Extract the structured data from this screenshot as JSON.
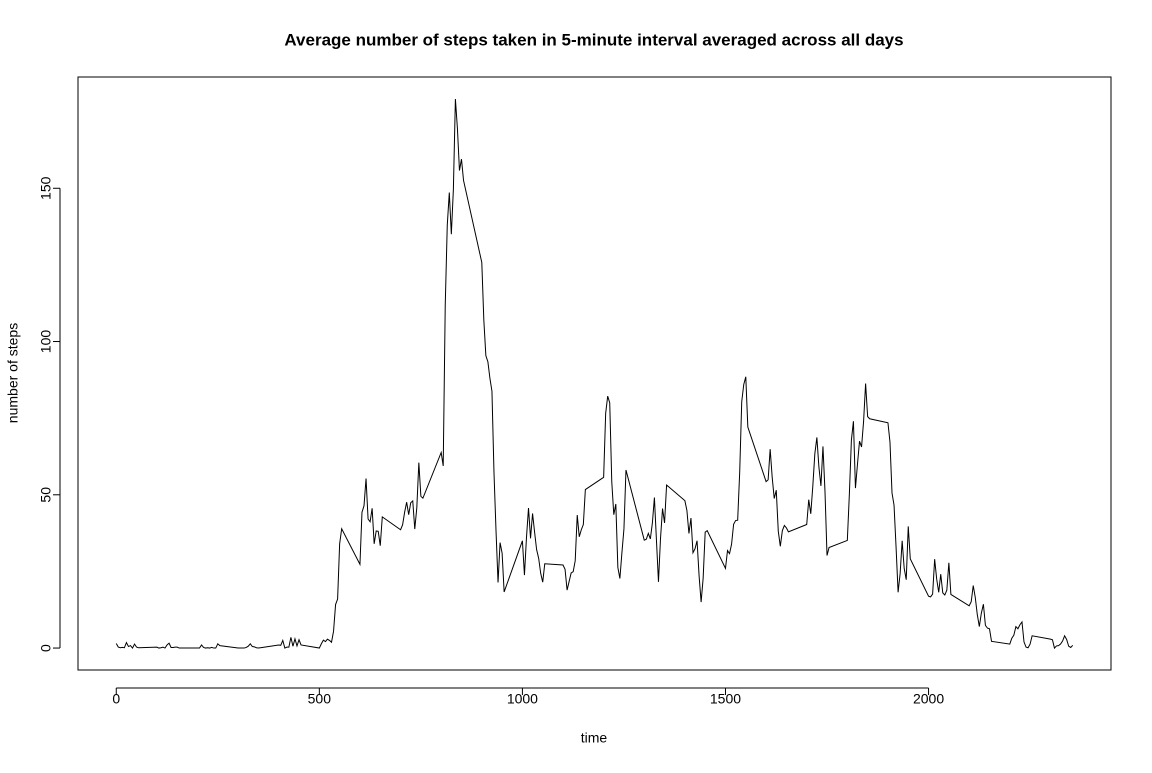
{
  "chart_data": {
    "type": "line",
    "title": "Average number of steps taken in 5-minute interval averaged across all days",
    "x_label": "time",
    "y_label": "number of steps",
    "x": [
      0,
      5,
      10,
      15,
      20,
      25,
      30,
      35,
      40,
      45,
      50,
      55,
      100,
      105,
      110,
      115,
      120,
      125,
      130,
      135,
      140,
      145,
      150,
      155,
      200,
      205,
      210,
      215,
      220,
      225,
      230,
      235,
      240,
      245,
      250,
      255,
      300,
      305,
      310,
      315,
      320,
      325,
      330,
      335,
      340,
      345,
      350,
      355,
      400,
      405,
      410,
      415,
      420,
      425,
      430,
      435,
      440,
      445,
      450,
      455,
      500,
      505,
      510,
      515,
      520,
      525,
      530,
      535,
      540,
      545,
      550,
      555,
      600,
      605,
      610,
      615,
      620,
      625,
      630,
      635,
      640,
      645,
      650,
      655,
      700,
      705,
      710,
      715,
      720,
      725,
      730,
      735,
      740,
      745,
      750,
      755,
      800,
      805,
      810,
      815,
      820,
      825,
      830,
      835,
      840,
      845,
      850,
      855,
      900,
      905,
      910,
      915,
      920,
      925,
      930,
      935,
      940,
      945,
      950,
      955,
      1000,
      1005,
      1010,
      1015,
      1020,
      1025,
      1030,
      1035,
      1040,
      1045,
      1050,
      1055,
      1100,
      1105,
      1110,
      1115,
      1120,
      1125,
      1130,
      1135,
      1140,
      1145,
      1150,
      1155,
      1200,
      1205,
      1210,
      1215,
      1220,
      1225,
      1230,
      1235,
      1240,
      1245,
      1250,
      1255,
      1300,
      1305,
      1310,
      1315,
      1320,
      1325,
      1330,
      1335,
      1340,
      1345,
      1350,
      1355,
      1400,
      1405,
      1410,
      1415,
      1420,
      1425,
      1430,
      1435,
      1440,
      1445,
      1450,
      1455,
      1500,
      1505,
      1510,
      1515,
      1520,
      1525,
      1530,
      1535,
      1540,
      1545,
      1550,
      1555,
      1600,
      1605,
      1610,
      1615,
      1620,
      1625,
      1630,
      1635,
      1640,
      1645,
      1650,
      1655,
      1700,
      1705,
      1710,
      1715,
      1720,
      1725,
      1730,
      1735,
      1740,
      1745,
      1750,
      1755,
      1800,
      1805,
      1810,
      1815,
      1820,
      1825,
      1830,
      1835,
      1840,
      1845,
      1850,
      1855,
      1900,
      1905,
      1910,
      1915,
      1920,
      1925,
      1930,
      1935,
      1940,
      1945,
      1950,
      1955,
      2000,
      2005,
      2010,
      2015,
      2020,
      2025,
      2030,
      2035,
      2040,
      2045,
      2050,
      2055,
      2100,
      2105,
      2110,
      2115,
      2120,
      2125,
      2130,
      2135,
      2140,
      2145,
      2150,
      2155,
      2200,
      2205,
      2210,
      2215,
      2220,
      2225,
      2230,
      2235,
      2240,
      2245,
      2250,
      2255,
      2300,
      2305,
      2310,
      2315,
      2320,
      2325,
      2330,
      2335,
      2340,
      2345,
      2350,
      2355
    ],
    "values": [
      1.5,
      0.3,
      0.1,
      0.2,
      0.1,
      1.8,
      0.5,
      0.8,
      0,
      1.3,
      0.3,
      0.1,
      0.3,
      0,
      0.1,
      0.3,
      0,
      1.0,
      1.6,
      0.2,
      0.2,
      0.3,
      0.3,
      0,
      0,
      0,
      1.0,
      0.2,
      0,
      0.1,
      0,
      0.2,
      0,
      0,
      1.4,
      0.8,
      0,
      0,
      0,
      0,
      0.2,
      0.6,
      1.4,
      0.5,
      0.4,
      0.1,
      0,
      0.1,
      1.0,
      0.9,
      2.5,
      0,
      0.3,
      0.3,
      3.5,
      0.6,
      3.0,
      0.7,
      2.7,
      1.0,
      0,
      1.4,
      2.6,
      2.1,
      2.9,
      2.5,
      1.9,
      5.5,
      14.2,
      16.0,
      34.0,
      38.9,
      27.3,
      44.3,
      46.4,
      55.3,
      42.1,
      41.2,
      45.6,
      34.0,
      38.2,
      38.1,
      33.4,
      42.8,
      38.6,
      40.2,
      44.3,
      47.6,
      43.5,
      47.4,
      48.0,
      38.8,
      45.8,
      60.5,
      49.5,
      48.9,
      63.8,
      59.4,
      111.9,
      138.0,
      148.6,
      135.0,
      149.5,
      179.1,
      169.5,
      155.8,
      159.5,
      152.6,
      125.8,
      107.0,
      95.4,
      93.4,
      88.0,
      83.8,
      57.3,
      38.3,
      21.4,
      34.4,
      31.0,
      18.3,
      35.0,
      23.8,
      36.0,
      45.7,
      35.8,
      43.9,
      37.8,
      32.1,
      29.3,
      24.4,
      21.5,
      27.5,
      27.1,
      25.7,
      18.9,
      21.7,
      24.5,
      24.9,
      28.5,
      43.4,
      36.3,
      38.6,
      40.3,
      51.7,
      55.7,
      76.6,
      82.2,
      80.0,
      54.3,
      43.5,
      47.0,
      26.3,
      22.7,
      31.1,
      38.9,
      58.1,
      35.2,
      35.5,
      37.4,
      35.6,
      40.8,
      49.1,
      35.2,
      21.6,
      35.7,
      45.5,
      40.8,
      53.2,
      48.1,
      44.9,
      37.4,
      42.4,
      31.1,
      32.4,
      35.0,
      23.6,
      15.0,
      22.8,
      37.8,
      38.3,
      26.0,
      31.8,
      30.8,
      33.9,
      40.4,
      41.6,
      41.7,
      57.4,
      80.4,
      86.0,
      88.5,
      72.1,
      54.3,
      54.9,
      64.9,
      55.7,
      48.8,
      51.5,
      38.1,
      33.2,
      38.3,
      40.0,
      39.2,
      37.9,
      40.3,
      48.4,
      43.8,
      52.8,
      63.4,
      68.7,
      59.1,
      52.9,
      65.8,
      51.1,
      30.2,
      32.8,
      35.1,
      50.2,
      67.8,
      74.0,
      52.2,
      60.0,
      67.5,
      65.6,
      73.9,
      86.3,
      75.5,
      74.8,
      73.5,
      67.2,
      50.6,
      46.6,
      32.9,
      18.2,
      24.3,
      35.0,
      26.0,
      22.3,
      39.7,
      29.1,
      16.9,
      16.7,
      17.6,
      29.0,
      22.5,
      18.2,
      24.1,
      18.0,
      17.3,
      18.9,
      27.8,
      17.5,
      13.8,
      15.1,
      20.4,
      16.5,
      10.9,
      7.0,
      11.4,
      14.3,
      7.4,
      6.5,
      6.3,
      2.2,
      1.3,
      3.2,
      4.2,
      7.0,
      6.3,
      7.6,
      8.5,
      2.0,
      0.3,
      0.1,
      1.3,
      4.0,
      2.9,
      2.7,
      0,
      0.7,
      0.8,
      1.3,
      2.3,
      4.0,
      2.8,
      0.6,
      0.2,
      0.9
    ],
    "color": "#000000",
    "xlim": [
      -94.2,
      2449.2
    ],
    "xticks": [
      0,
      500,
      1000,
      1500,
      2000
    ],
    "ylim": [
      -7.16,
      186.3
    ],
    "yticks": [
      0,
      50,
      100,
      150
    ]
  }
}
